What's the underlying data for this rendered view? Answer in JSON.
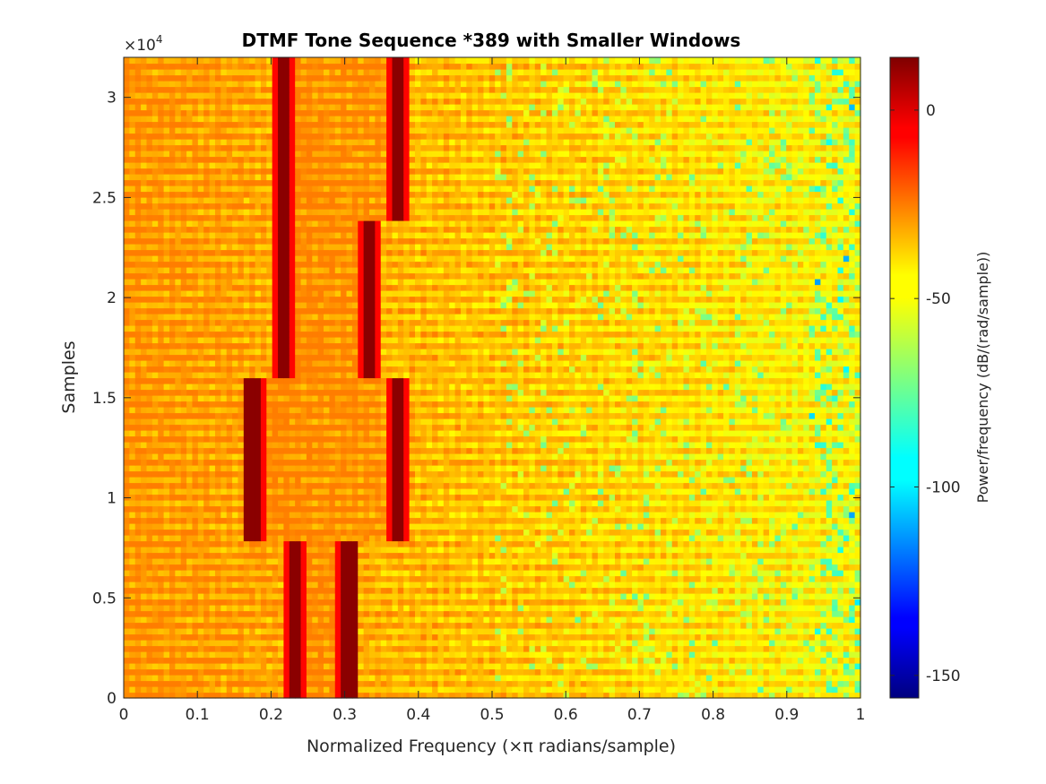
{
  "chart_data": {
    "type": "heatmap",
    "title": "DTMF Tone Sequence *389 with Smaller Windows",
    "xlabel": "Normalized Frequency (×π radians/sample)",
    "ylabel": "Samples",
    "y_exponent_label": "×10",
    "y_exponent_power": "4",
    "xlim": [
      0,
      1
    ],
    "ylim": [
      0,
      3.2
    ],
    "x_ticks": [
      "0",
      "0.1",
      "0.2",
      "0.3",
      "0.4",
      "0.5",
      "0.6",
      "0.7",
      "0.8",
      "0.9",
      "1"
    ],
    "y_ticks": [
      "0",
      "0.5",
      "1",
      "1.5",
      "2",
      "2.5",
      "3"
    ],
    "colorbar": {
      "label": "Power/frequency (dB/(rad/sample))",
      "colormap": "jet",
      "clim": [
        -156,
        14
      ],
      "ticks": [
        "0",
        "-50",
        "-100",
        "-150"
      ],
      "tick_values": [
        0,
        -50,
        -100,
        -150
      ]
    },
    "tone_segments": [
      {
        "symbol": "*",
        "y_range": [
          0,
          0.79
        ],
        "tone_freqs": [
          0.235,
          0.305
        ]
      },
      {
        "symbol": "3",
        "y_range": [
          0.79,
          1.59
        ],
        "tone_freqs": [
          0.175,
          0.37
        ]
      },
      {
        "symbol": "8",
        "y_range": [
          1.59,
          2.39
        ],
        "tone_freqs": [
          0.215,
          0.335
        ]
      },
      {
        "symbol": "9",
        "y_range": [
          2.39,
          3.2
        ],
        "tone_freqs": [
          0.215,
          0.37
        ]
      }
    ],
    "grid": false
  }
}
